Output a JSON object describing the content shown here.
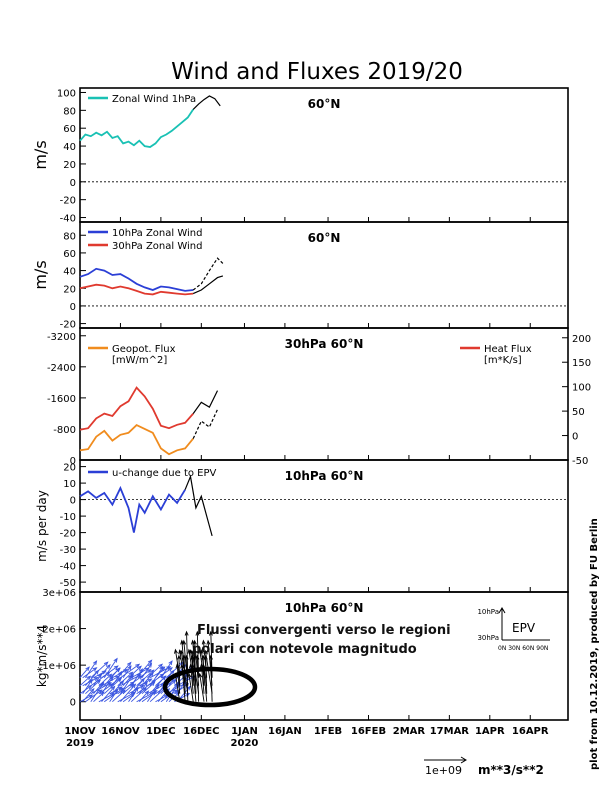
{
  "title": "Wind and Fluxes 2019/20",
  "credit": "plot from 10.12.2019, produced by FU Berlin",
  "date_axis": {
    "ticks": [
      {
        "date": "2019-11-01",
        "label": "1NOV",
        "sub": "2019"
      },
      {
        "date": "2019-11-16",
        "label": "16NOV"
      },
      {
        "date": "2019-12-01",
        "label": "1DEC"
      },
      {
        "date": "2019-12-16",
        "label": "16DEC"
      },
      {
        "date": "2020-01-01",
        "label": "1JAN",
        "sub": "2020"
      },
      {
        "date": "2020-01-16",
        "label": "16JAN"
      },
      {
        "date": "2020-02-01",
        "label": "1FEB"
      },
      {
        "date": "2020-02-16",
        "label": "16FEB"
      },
      {
        "date": "2020-03-02",
        "label": "2MAR"
      },
      {
        "date": "2020-03-17",
        "label": "17MAR"
      },
      {
        "date": "2020-04-01",
        "label": "1APR"
      },
      {
        "date": "2020-04-16",
        "label": "16APR"
      }
    ],
    "range": [
      "2019-11-01",
      "2020-04-30"
    ]
  },
  "chart_data": [
    {
      "type": "line",
      "label": "60°N",
      "ylabel": "m/s",
      "ylim": [
        -45,
        105
      ],
      "yticks": [
        -40,
        -20,
        0,
        20,
        40,
        60,
        80,
        100
      ],
      "series": [
        {
          "name": "Zonal Wind 1hPa",
          "color": "#19c1b4",
          "x": [
            "2019-11-01",
            "2019-11-03",
            "2019-11-05",
            "2019-11-07",
            "2019-11-09",
            "2019-11-11",
            "2019-11-13",
            "2019-11-15",
            "2019-11-17",
            "2019-11-19",
            "2019-11-21",
            "2019-11-23",
            "2019-11-25",
            "2019-11-27",
            "2019-11-29",
            "2019-12-01",
            "2019-12-03",
            "2019-12-05",
            "2019-12-07",
            "2019-12-09",
            "2019-12-11",
            "2019-12-13"
          ],
          "values": [
            46,
            53,
            51,
            55,
            52,
            56,
            49,
            51,
            43,
            45,
            41,
            46,
            40,
            39,
            43,
            50,
            53,
            57,
            62,
            67,
            72,
            81
          ]
        },
        {
          "name": "forecast",
          "color": "#000000",
          "dashed": false,
          "x": [
            "2019-12-13",
            "2019-12-15",
            "2019-12-17",
            "2019-12-19",
            "2019-12-21",
            "2019-12-23"
          ],
          "values": [
            81,
            87,
            92,
            96,
            93,
            85
          ]
        }
      ]
    },
    {
      "type": "line",
      "label": "60°N",
      "ylabel": "m/s",
      "ylim": [
        -25,
        95
      ],
      "yticks": [
        -20,
        0,
        20,
        40,
        60,
        80
      ],
      "series": [
        {
          "name": "10hPa Zonal Wind",
          "color": "#2b3fd6",
          "x": [
            "2019-11-01",
            "2019-11-04",
            "2019-11-07",
            "2019-11-10",
            "2019-11-13",
            "2019-11-16",
            "2019-11-19",
            "2019-11-22",
            "2019-11-25",
            "2019-11-28",
            "2019-12-01",
            "2019-12-04",
            "2019-12-07",
            "2019-12-10",
            "2019-12-13"
          ],
          "values": [
            33,
            36,
            42,
            40,
            35,
            36,
            31,
            25,
            21,
            18,
            22,
            21,
            19,
            17,
            18
          ]
        },
        {
          "name": "30hPa Zonal Wind",
          "color": "#e03a2f",
          "x": [
            "2019-11-01",
            "2019-11-04",
            "2019-11-07",
            "2019-11-10",
            "2019-11-13",
            "2019-11-16",
            "2019-11-19",
            "2019-11-22",
            "2019-11-25",
            "2019-11-28",
            "2019-12-01",
            "2019-12-04",
            "2019-12-07",
            "2019-12-10",
            "2019-12-13"
          ],
          "values": [
            20,
            22,
            24,
            23,
            20,
            22,
            20,
            17,
            14,
            13,
            16,
            15,
            14,
            13,
            14
          ]
        },
        {
          "name": "forecast 10hPa",
          "color": "#000000",
          "dashed": true,
          "x": [
            "2019-12-13",
            "2019-12-16",
            "2019-12-19",
            "2019-12-22",
            "2019-12-24"
          ],
          "values": [
            18,
            25,
            40,
            54,
            48
          ]
        },
        {
          "name": "forecast 30hPa",
          "color": "#000000",
          "dashed": false,
          "x": [
            "2019-12-13",
            "2019-12-16",
            "2019-12-19",
            "2019-12-22",
            "2019-12-24"
          ],
          "values": [
            14,
            18,
            25,
            32,
            34
          ]
        }
      ]
    },
    {
      "type": "line",
      "label": "30hPa 60°N",
      "ylim": [
        0,
        -3400
      ],
      "yticks": [
        0,
        -800,
        -1600,
        -2400,
        -3200
      ],
      "y2lim": [
        -50,
        220
      ],
      "y2ticks": [
        -50,
        0,
        50,
        100,
        150,
        200
      ],
      "series": [
        {
          "name": "Geopot. Flux",
          "units": "[mW/m^2]",
          "color": "#f08c1e",
          "axis": "left",
          "x": [
            "2019-11-01",
            "2019-11-04",
            "2019-11-07",
            "2019-11-10",
            "2019-11-13",
            "2019-11-16",
            "2019-11-19",
            "2019-11-22",
            "2019-11-25",
            "2019-11-28",
            "2019-12-01",
            "2019-12-04",
            "2019-12-07",
            "2019-12-10",
            "2019-12-13"
          ],
          "values": [
            -250,
            -280,
            -600,
            -750,
            -500,
            -650,
            -700,
            -900,
            -800,
            -700,
            -300,
            -150,
            -250,
            -300,
            -550
          ]
        },
        {
          "name": "Heat Flux",
          "units": "[m*K/s]",
          "color": "#e03a2f",
          "axis": "right",
          "x": [
            "2019-11-01",
            "2019-11-04",
            "2019-11-07",
            "2019-11-10",
            "2019-11-13",
            "2019-11-16",
            "2019-11-19",
            "2019-11-22",
            "2019-11-25",
            "2019-11-28",
            "2019-12-01",
            "2019-12-04",
            "2019-12-07",
            "2019-12-10",
            "2019-12-13"
          ],
          "values": [
            12,
            15,
            35,
            45,
            40,
            60,
            70,
            98,
            80,
            55,
            20,
            15,
            22,
            26,
            45
          ]
        },
        {
          "name": "forecast geopot",
          "color": "#000000",
          "dashed": true,
          "axis": "left",
          "x": [
            "2019-12-13",
            "2019-12-16",
            "2019-12-19",
            "2019-12-22"
          ],
          "values": [
            -550,
            -1000,
            -850,
            -1300
          ]
        },
        {
          "name": "forecast heat",
          "color": "#000000",
          "dashed": false,
          "axis": "right",
          "x": [
            "2019-12-13",
            "2019-12-16",
            "2019-12-19",
            "2019-12-22"
          ],
          "values": [
            45,
            68,
            58,
            92
          ]
        }
      ]
    },
    {
      "type": "line",
      "label": "10hPa 60°N",
      "ylabel": "m/s per day",
      "ylim": [
        -56,
        24
      ],
      "yticks": [
        -50,
        -40,
        -30,
        -20,
        -10,
        0,
        10,
        20
      ],
      "series": [
        {
          "name": "u-change due to EPV",
          "color": "#2b3fd6",
          "x": [
            "2019-11-01",
            "2019-11-04",
            "2019-11-07",
            "2019-11-10",
            "2019-11-13",
            "2019-11-16",
            "2019-11-19",
            "2019-11-21",
            "2019-11-23",
            "2019-11-25",
            "2019-11-28",
            "2019-12-01",
            "2019-12-04",
            "2019-12-07",
            "2019-12-10"
          ],
          "values": [
            2,
            5,
            1,
            4,
            -3,
            7,
            -5,
            -20,
            -3,
            -8,
            2,
            -6,
            3,
            -2,
            6
          ]
        },
        {
          "name": "forecast",
          "color": "#000000",
          "dashed": false,
          "x": [
            "2019-12-10",
            "2019-12-12",
            "2019-12-14",
            "2019-12-16",
            "2019-12-18",
            "2019-12-20"
          ],
          "values": [
            6,
            14,
            -5,
            2,
            -10,
            -22
          ]
        }
      ]
    },
    {
      "type": "quiver",
      "label": "10hPa 60°N",
      "ylabel": "kg*m/s**4",
      "ylim": [
        -500000,
        3000000
      ],
      "yticks": [
        0,
        "1e+06",
        "2e+06",
        "3e+06"
      ],
      "ref_vector": "1e+09",
      "units": "m**3/s**2",
      "legend": {
        "title": "EPV",
        "y_top": "10hPa",
        "y_bottom": "30hPa",
        "x": "0N 30N 60N 90N"
      },
      "annotation": "Flussi convergenti verso le regioni polari con notevole magnitudo"
    }
  ]
}
